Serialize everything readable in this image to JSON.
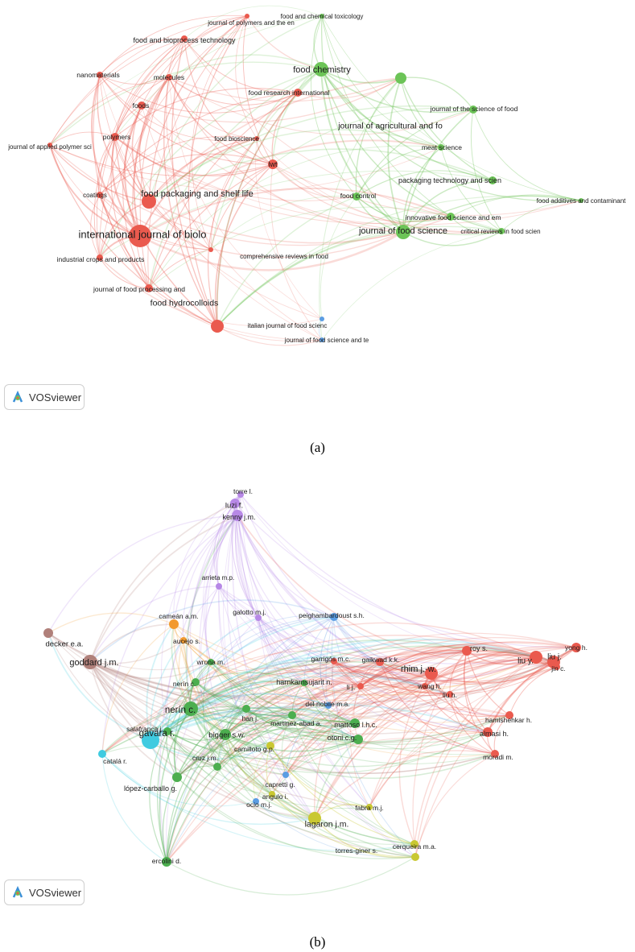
{
  "panels": [
    {
      "id": "a",
      "caption": "(a)",
      "button_label": "VOSviewer",
      "clusters": {
        "red": "#ea5a4e",
        "green": "#6cc457",
        "blue": "#5b9de3"
      },
      "nodes": [
        {
          "label": "journal of polymers and the en",
          "cluster": "red",
          "size": 3
        },
        {
          "label": "food and chemical toxicology",
          "cluster": "green",
          "size": 3
        },
        {
          "label": "food and bioprocess technology",
          "cluster": "red",
          "size": 4
        },
        {
          "label": "food chemistry",
          "cluster": "green",
          "size": 9
        },
        {
          "label": "nanomaterials",
          "cluster": "red",
          "size": 4
        },
        {
          "label": "molecules",
          "cluster": "red",
          "size": 4
        },
        {
          "label": "food research international",
          "cluster": "red",
          "size": 5
        },
        {
          "label": "foods",
          "cluster": "red",
          "size": 5
        },
        {
          "label": "journal of the science of food",
          "cluster": "green",
          "size": 5
        },
        {
          "label": "journal of agricultural and fo",
          "cluster": "green",
          "size": 7
        },
        {
          "label": "polymers",
          "cluster": "red",
          "size": 5
        },
        {
          "label": "food bioscience",
          "cluster": "red",
          "size": 3
        },
        {
          "label": "journal of applied polymer sci",
          "cluster": "red",
          "size": 3
        },
        {
          "label": "meat science",
          "cluster": "green",
          "size": 4
        },
        {
          "label": "lwt",
          "cluster": "red",
          "size": 6
        },
        {
          "label": "packaging technology and scien",
          "cluster": "green",
          "size": 5
        },
        {
          "label": "coatings",
          "cluster": "red",
          "size": 4
        },
        {
          "label": "food packaging and shelf life",
          "cluster": "red",
          "size": 9
        },
        {
          "label": "food control",
          "cluster": "green",
          "size": 5
        },
        {
          "label": "food additives and contaminant",
          "cluster": "green",
          "size": 3
        },
        {
          "label": "innovative food science and em",
          "cluster": "green",
          "size": 5
        },
        {
          "label": "international journal of biolo",
          "cluster": "red",
          "size": 14
        },
        {
          "label": "journal of food science",
          "cluster": "green",
          "size": 9
        },
        {
          "label": "critical reviews in food scien",
          "cluster": "green",
          "size": 4
        },
        {
          "label": "comprehensive reviews in food",
          "cluster": "red",
          "size": 3
        },
        {
          "label": "industrial crops and products",
          "cluster": "red",
          "size": 4
        },
        {
          "label": "journal of food processing and",
          "cluster": "red",
          "size": 5
        },
        {
          "label": "food hydrocolloids",
          "cluster": "red",
          "size": 8
        },
        {
          "label": "italian journal of food scienc",
          "cluster": "blue",
          "size": 3
        },
        {
          "label": "journal of food science and te",
          "cluster": "blue",
          "size": 3
        }
      ]
    },
    {
      "id": "b",
      "caption": "(b)",
      "button_label": "VOSviewer",
      "clusters": {
        "red": "#ea5a4e",
        "green": "#4cae4f",
        "blue": "#5b9de3",
        "yellow": "#c9c832",
        "purple": "#b788e6",
        "cyan": "#3fcbe0",
        "orange": "#f29a2e",
        "brown": "#b0807a"
      },
      "nodes": [
        {
          "label": "torre l.",
          "cluster": "purple",
          "size": 4
        },
        {
          "label": "luzi f.",
          "cluster": "purple",
          "size": 6
        },
        {
          "label": "kenny j.m.",
          "cluster": "purple",
          "size": 7
        },
        {
          "label": "arrieta m.p.",
          "cluster": "purple",
          "size": 4
        },
        {
          "label": "cameán a.m.",
          "cluster": "orange",
          "size": 6
        },
        {
          "label": "galotto m.j.",
          "cluster": "purple",
          "size": 4
        },
        {
          "label": "peighambardoust s.h.",
          "cluster": "blue",
          "size": 5
        },
        {
          "label": "decker e.a.",
          "cluster": "brown",
          "size": 6
        },
        {
          "label": "goddard j.m.",
          "cluster": "brown",
          "size": 9
        },
        {
          "label": "aucejo s.",
          "cluster": "orange",
          "size": 4
        },
        {
          "label": "wrona m.",
          "cluster": "green",
          "size": 4
        },
        {
          "label": "garrigós m.c.",
          "cluster": "red",
          "size": 4
        },
        {
          "label": "gaikwad k.k.",
          "cluster": "red",
          "size": 5
        },
        {
          "label": "rhim j.-w.",
          "cluster": "red",
          "size": 8
        },
        {
          "label": "roy s.",
          "cluster": "red",
          "size": 6
        },
        {
          "label": "liu y.",
          "cluster": "red",
          "size": 8
        },
        {
          "label": "liu j.",
          "cluster": "red",
          "size": 8
        },
        {
          "label": "yong h.",
          "cluster": "red",
          "size": 6
        },
        {
          "label": "jin c.",
          "cluster": "red",
          "size": 4
        },
        {
          "label": "harnkarnsujarit n.",
          "cluster": "green",
          "size": 4
        },
        {
          "label": "li j.",
          "cluster": "red",
          "size": 4
        },
        {
          "label": "wang h.",
          "cluster": "red",
          "size": 4
        },
        {
          "label": "liu h.",
          "cluster": "red",
          "size": 4
        },
        {
          "label": "nerín c.",
          "cluster": "green",
          "size": 5
        },
        {
          "label": "nerín c.",
          "cluster": "green",
          "size": 9
        },
        {
          "label": "del nobile m.a.",
          "cluster": "blue",
          "size": 4
        },
        {
          "label": "han j.",
          "cluster": "green",
          "size": 5
        },
        {
          "label": "martinez-abad a.",
          "cluster": "green",
          "size": 5
        },
        {
          "label": "mattoso l.h.c.",
          "cluster": "green",
          "size": 6
        },
        {
          "label": "hamishehkar h.",
          "cluster": "red",
          "size": 5
        },
        {
          "label": "salafranca j.",
          "cluster": "green",
          "size": 5
        },
        {
          "label": "bigger s.w.",
          "cluster": "green",
          "size": 7
        },
        {
          "label": "otoni c.g.",
          "cluster": "green",
          "size": 6
        },
        {
          "label": "almasi h.",
          "cluster": "red",
          "size": 6
        },
        {
          "label": "gavara r.",
          "cluster": "cyan",
          "size": 11
        },
        {
          "label": "camilloto g.p.",
          "cluster": "yellow",
          "size": 5
        },
        {
          "label": "cruz j.m.",
          "cluster": "green",
          "size": 5
        },
        {
          "label": "catalá r.",
          "cluster": "cyan",
          "size": 5
        },
        {
          "label": "moradi m.",
          "cluster": "red",
          "size": 5
        },
        {
          "label": "capretti g.",
          "cluster": "blue",
          "size": 4
        },
        {
          "label": "lópez-carballo g.",
          "cluster": "green",
          "size": 6
        },
        {
          "label": "angulo i.",
          "cluster": "yellow",
          "size": 4
        },
        {
          "label": "ocio m.j.",
          "cluster": "blue",
          "size": 4
        },
        {
          "label": "fabra m.j.",
          "cluster": "yellow",
          "size": 4
        },
        {
          "label": "lagaron j.m.",
          "cluster": "yellow",
          "size": 8
        },
        {
          "label": "ercolini d.",
          "cluster": "green",
          "size": 6
        },
        {
          "label": "cerqueira m.a.",
          "cluster": "yellow",
          "size": 5
        },
        {
          "label": "torres-giner s.",
          "cluster": "yellow",
          "size": 5
        }
      ]
    }
  ]
}
